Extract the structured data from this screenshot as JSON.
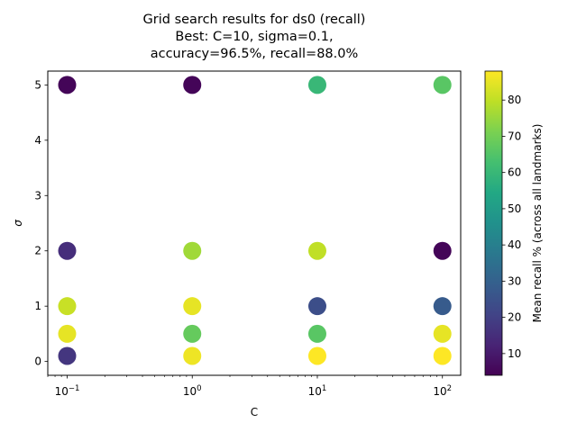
{
  "chart_data": {
    "type": "scatter",
    "title": "Grid search results for ds0 (recall)",
    "title_lines": [
      "Grid search results for ds0 (recall)",
      "Best: C=10, sigma=0.1,",
      "accuracy=96.5%, recall=88.0%"
    ],
    "xlabel": "C",
    "ylabel": "σ",
    "xscale": "log",
    "xlim": [
      0.07,
      140
    ],
    "ylim": [
      -0.25,
      5.25
    ],
    "xticks": [
      {
        "value": 0.1,
        "base": "10",
        "exp": "−1"
      },
      {
        "value": 1,
        "base": "10",
        "exp": "0"
      },
      {
        "value": 10,
        "base": "10",
        "exp": "1"
      },
      {
        "value": 100,
        "base": "10",
        "exp": "2"
      }
    ],
    "yticks": [
      0,
      1,
      2,
      3,
      4,
      5
    ],
    "colorbar": {
      "label": "Mean recall % (across all landmarks)",
      "colormap": "viridis",
      "range": [
        4,
        88
      ],
      "ticks": [
        10,
        20,
        30,
        40,
        50,
        60,
        70,
        80
      ]
    },
    "points": [
      {
        "C": 0.1,
        "sigma": 5,
        "recall": 5
      },
      {
        "C": 1,
        "sigma": 5,
        "recall": 5
      },
      {
        "C": 10,
        "sigma": 5,
        "recall": 60
      },
      {
        "C": 100,
        "sigma": 5,
        "recall": 66
      },
      {
        "C": 0.1,
        "sigma": 2,
        "recall": 15
      },
      {
        "C": 1,
        "sigma": 2,
        "recall": 76
      },
      {
        "C": 10,
        "sigma": 2,
        "recall": 80
      },
      {
        "C": 100,
        "sigma": 2,
        "recall": 5
      },
      {
        "C": 0.1,
        "sigma": 1,
        "recall": 81
      },
      {
        "C": 1,
        "sigma": 1,
        "recall": 85
      },
      {
        "C": 10,
        "sigma": 1,
        "recall": 24
      },
      {
        "C": 100,
        "sigma": 1,
        "recall": 28
      },
      {
        "C": 0.1,
        "sigma": 0.5,
        "recall": 85
      },
      {
        "C": 1,
        "sigma": 0.5,
        "recall": 68
      },
      {
        "C": 10,
        "sigma": 0.5,
        "recall": 66
      },
      {
        "C": 100,
        "sigma": 0.5,
        "recall": 85
      },
      {
        "C": 0.1,
        "sigma": 0.1,
        "recall": 17
      },
      {
        "C": 1,
        "sigma": 0.1,
        "recall": 86
      },
      {
        "C": 10,
        "sigma": 0.1,
        "recall": 88
      },
      {
        "C": 100,
        "sigma": 0.1,
        "recall": 88
      }
    ]
  }
}
